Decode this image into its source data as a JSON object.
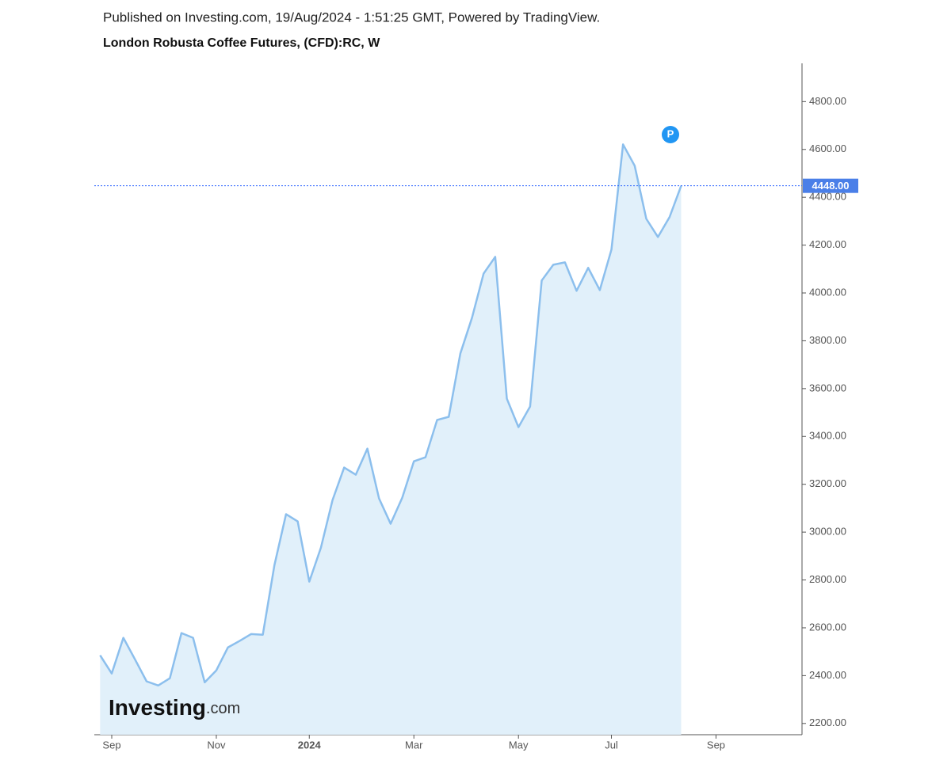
{
  "chart_data": {
    "type": "area",
    "title": "Published on Investing.com, 19/Aug/2024 - 1:51:25 GMT, Powered by TradingView.",
    "subtitle": "London Robusta Coffee Futures, (CFD):RC, W",
    "watermark": {
      "brand": "Investing",
      "suffix": ".com"
    },
    "marker_label": "P",
    "last_label": "4448.00",
    "color": "#8cbfed",
    "fill": "#e1f0fa",
    "x": [
      0,
      1,
      2,
      3,
      4,
      5,
      6,
      7,
      8,
      9,
      10,
      11,
      12,
      13,
      14,
      15,
      16,
      17,
      18,
      19,
      20,
      21,
      22,
      23,
      24,
      25,
      26,
      27,
      28,
      29,
      30,
      31,
      32,
      33,
      34,
      35,
      36,
      37,
      38,
      39,
      40,
      41,
      42,
      43,
      44,
      45,
      46,
      47,
      48,
      49,
      50
    ],
    "values": [
      2485,
      2409,
      2558,
      2468,
      2376,
      2359,
      2389,
      2578,
      2558,
      2372,
      2422,
      2518,
      2545,
      2574,
      2571,
      2862,
      3075,
      3045,
      2793,
      2935,
      3134,
      3270,
      3240,
      3349,
      3141,
      3035,
      3144,
      3296,
      3313,
      3469,
      3482,
      3747,
      3896,
      4081,
      4151,
      3558,
      3439,
      3525,
      4052,
      4118,
      4128,
      4009,
      4105,
      4012,
      4181,
      4621,
      4532,
      4310,
      4234,
      4317,
      4448
    ],
    "xlim": [
      -0.5,
      60.4
    ],
    "xticks": [
      {
        "value": 1,
        "label": "Sep"
      },
      {
        "value": 10,
        "label": "Nov"
      },
      {
        "value": 18,
        "label": "2024"
      },
      {
        "value": 27,
        "label": "Mar"
      },
      {
        "value": 36,
        "label": "May"
      },
      {
        "value": 44,
        "label": "Jul"
      },
      {
        "value": 53,
        "label": "Sep"
      }
    ],
    "ylim": [
      2153,
      4960
    ],
    "yticks": [
      {
        "value": 2200,
        "label": "2200.00"
      },
      {
        "value": 2400,
        "label": "2400.00"
      },
      {
        "value": 2600,
        "label": "2600.00"
      },
      {
        "value": 2800,
        "label": "2800.00"
      },
      {
        "value": 3000,
        "label": "3000.00"
      },
      {
        "value": 3200,
        "label": "3200.00"
      },
      {
        "value": 3400,
        "label": "3400.00"
      },
      {
        "value": 3600,
        "label": "3600.00"
      },
      {
        "value": 3800,
        "label": "3800.00"
      },
      {
        "value": 4000,
        "label": "4000.00"
      },
      {
        "value": 4200,
        "label": "4200.00"
      },
      {
        "value": 4400,
        "label": "4400.00"
      },
      {
        "value": 4600,
        "label": "4600.00"
      },
      {
        "value": 4800,
        "label": "4800.00"
      }
    ]
  }
}
